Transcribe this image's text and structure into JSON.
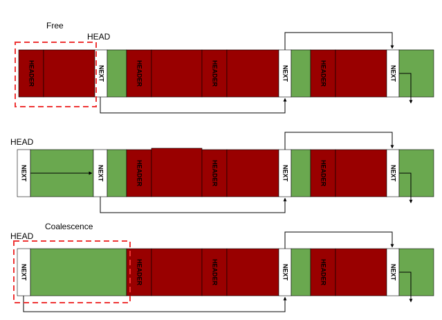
{
  "colors": {
    "allocated": "#990000",
    "free": "#6aa84f",
    "next_box": "#ffffff",
    "highlight": "#ee3333",
    "line": "#000000"
  },
  "labels": {
    "row1_title": "Free",
    "row1_head": "HEAD",
    "row2_head": "HEAD",
    "row3_title": "Coalescence",
    "row3_head": "HEAD"
  },
  "cells": {
    "header": "HEADER",
    "next": "NEXT"
  }
}
